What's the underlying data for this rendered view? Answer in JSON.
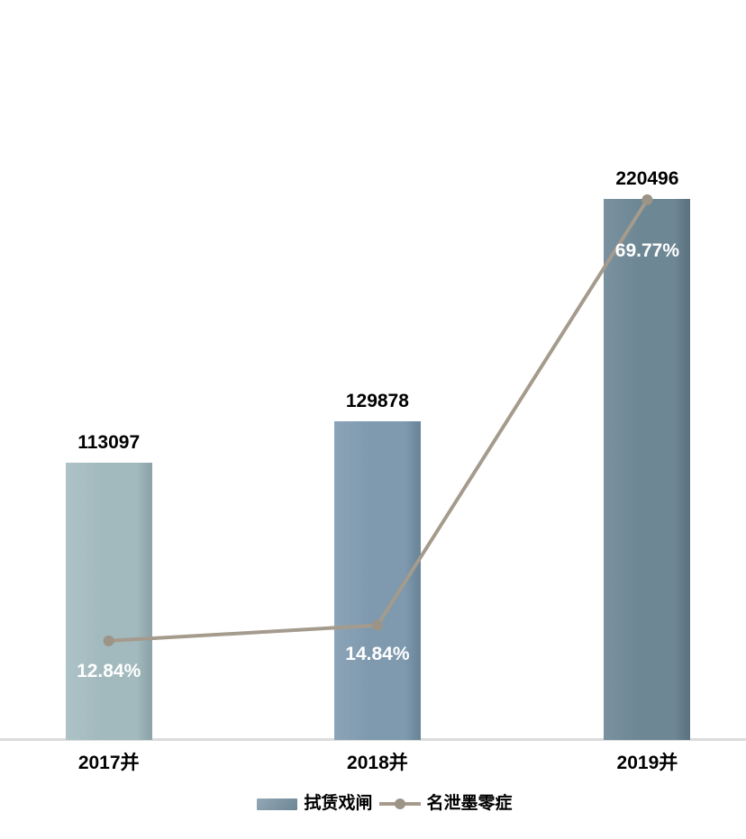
{
  "chart_data": {
    "type": "combo-bar-line",
    "title": "",
    "xlabel": "",
    "ylabel": "",
    "categories": [
      "2017并",
      "2018并",
      "2019并"
    ],
    "series": [
      {
        "name": "拭赁戏闸",
        "type": "bar",
        "axis": "primary",
        "values": [
          113097,
          129878,
          220496
        ],
        "colors": [
          {
            "light": "#aec3c7",
            "fill": "#a2b9bd",
            "dark": "#8da4aa"
          },
          {
            "light": "#8ca4b8",
            "fill": "#7f99ae",
            "dark": "#6b8599"
          },
          {
            "light": "#7a92a0",
            "fill": "#6e8794",
            "dark": "#5c7380"
          }
        ],
        "legend_swatch_light": "#93a8b5",
        "legend_swatch_dark": "#6d8595"
      },
      {
        "name": "名泄墨零症",
        "type": "line",
        "axis": "secondary",
        "values": [
          12.84,
          14.84,
          69.77
        ],
        "labels": [
          "12.84%",
          "14.84%",
          "69.77%"
        ],
        "color": "#a49b8d",
        "marker_color": "#9d9488"
      }
    ],
    "grid": false,
    "value_axis_hidden": true,
    "axis_line_color": "#dcdcdc",
    "value_label_color": "#000000",
    "line_label_color": "#ffffff",
    "legend_position": "bottom"
  }
}
